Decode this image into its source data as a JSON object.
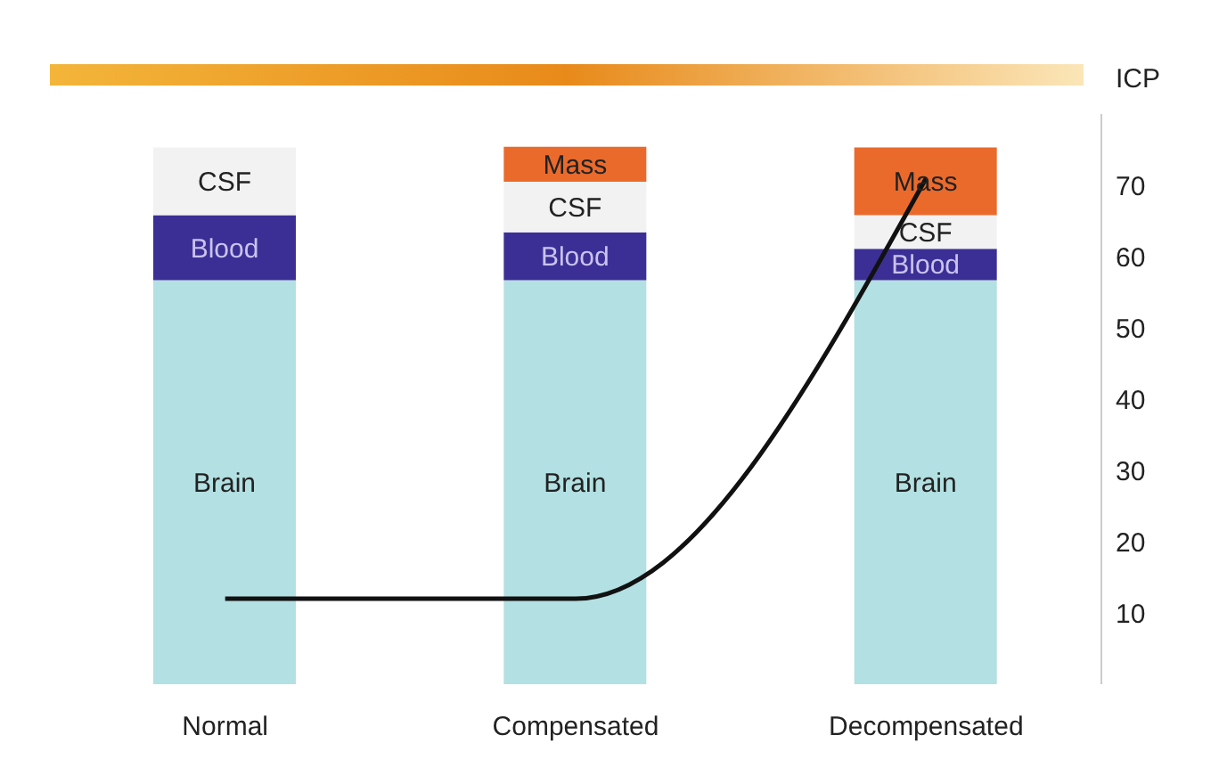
{
  "chart_data": {
    "type": "bar",
    "stacked": true,
    "ylabel": "ICP",
    "categories": [
      "Normal",
      "Compensated",
      "Decompensated"
    ],
    "series": [
      {
        "name": "Brain",
        "color": "#b3e0e2",
        "values": [
          56.7,
          56.7,
          56.7
        ]
      },
      {
        "name": "Blood",
        "color": "#3b2f96",
        "values": [
          9.1,
          6.7,
          4.4
        ]
      },
      {
        "name": "CSF",
        "color": "#f2f2f2",
        "values": [
          9.5,
          7.1,
          4.7
        ]
      },
      {
        "name": "Mass",
        "color": "#ea6a2c",
        "values": [
          null,
          4.9,
          9.5
        ]
      },
      {
        "type": "line",
        "color": "#111111",
        "values": [
          12,
          12,
          71
        ]
      }
    ],
    "ylim": [
      0,
      80
    ],
    "yticks": [
      10,
      20,
      30,
      40,
      50,
      60,
      70
    ],
    "grid": false,
    "marker": "none",
    "line_style": "solid"
  }
}
